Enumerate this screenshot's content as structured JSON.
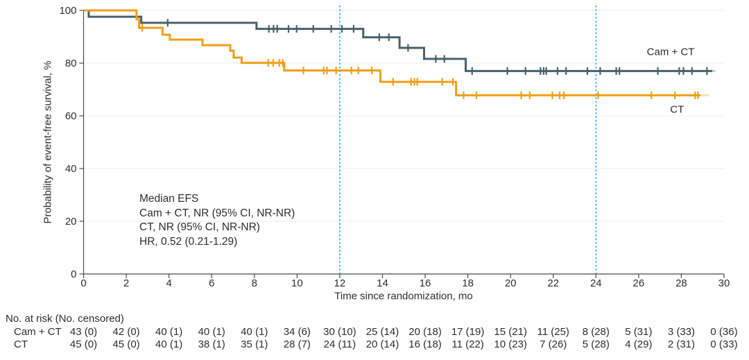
{
  "chart_data": {
    "type": "line",
    "subtype": "kaplan-meier-step",
    "title": "",
    "xlabel": "Time since randomization, mo",
    "ylabel": "Probability of event-free survival, %",
    "xlim": [
      0,
      30
    ],
    "ylim": [
      0,
      100
    ],
    "xticks": [
      0,
      2,
      4,
      6,
      8,
      10,
      12,
      14,
      16,
      18,
      20,
      22,
      24,
      26,
      28,
      30
    ],
    "yticks": [
      0,
      20,
      40,
      60,
      80,
      100
    ],
    "grid": "horizontal",
    "grid_color": "#ececec",
    "axis_color": "#4a4a4a",
    "reference_lines_x": [
      12,
      24
    ],
    "reference_line_color": "#3fb9e8",
    "annotation": {
      "lines": [
        "Median EFS",
        "Cam + CT, NR (95% CI, NR-NR)",
        "CT, NR (95% CI, NR-NR)",
        "HR, 0.52 (0.21-1.29)"
      ]
    },
    "series": [
      {
        "name": "Cam + CT",
        "slug": "cam-ct",
        "color": "#48616f",
        "steps": [
          [
            0,
            100
          ],
          [
            0.24,
            97.6
          ],
          [
            2.7,
            95.3
          ],
          [
            8.1,
            93.0
          ],
          [
            13.1,
            89.8
          ],
          [
            14.8,
            85.8
          ],
          [
            15.95,
            81.6
          ],
          [
            17.9,
            77.0
          ],
          [
            29.45,
            77.0
          ]
        ],
        "tail_to": 29.6,
        "censors": [
          [
            3.94,
            95.3
          ],
          [
            8.68,
            93.0
          ],
          [
            8.9,
            93.0
          ],
          [
            9.07,
            93.0
          ],
          [
            9.6,
            93.0
          ],
          [
            9.98,
            93.0
          ],
          [
            10.76,
            93.0
          ],
          [
            11.6,
            93.0
          ],
          [
            12.1,
            93.0
          ],
          [
            12.65,
            93.0
          ],
          [
            13.85,
            89.8
          ],
          [
            14.3,
            89.8
          ],
          [
            15.2,
            85.8
          ],
          [
            16.5,
            81.6
          ],
          [
            16.9,
            81.6
          ],
          [
            18.2,
            77.0
          ],
          [
            19.85,
            77.0
          ],
          [
            20.7,
            77.0
          ],
          [
            21.4,
            77.0
          ],
          [
            21.55,
            77.0
          ],
          [
            21.67,
            77.0
          ],
          [
            22.2,
            77.0
          ],
          [
            22.6,
            77.0
          ],
          [
            23.6,
            77.0
          ],
          [
            24.2,
            77.0
          ],
          [
            24.95,
            77.0
          ],
          [
            25.1,
            77.0
          ],
          [
            26.9,
            77.0
          ],
          [
            27.9,
            77.0
          ],
          [
            28.1,
            77.0
          ],
          [
            28.5,
            77.0
          ],
          [
            29.2,
            77.0
          ]
        ],
        "label_pos": {
          "t": 27.5,
          "v": 84.2
        }
      },
      {
        "name": "CT",
        "slug": "ct",
        "color": "#f09e16",
        "steps": [
          [
            0,
            100
          ],
          [
            2.48,
            96.6
          ],
          [
            2.6,
            93.4
          ],
          [
            3.7,
            90.8
          ],
          [
            4.04,
            88.9
          ],
          [
            5.57,
            86.8
          ],
          [
            6.87,
            84.7
          ],
          [
            7.03,
            82.1
          ],
          [
            7.4,
            80.1
          ],
          [
            9.4,
            77.2
          ],
          [
            13.9,
            72.9
          ],
          [
            17.45,
            67.8
          ],
          [
            28.9,
            67.8
          ]
        ],
        "tail_to": 29.3,
        "censors": [
          [
            2.74,
            93.4
          ],
          [
            8.65,
            80.1
          ],
          [
            8.88,
            80.1
          ],
          [
            9.17,
            80.1
          ],
          [
            9.33,
            80.1
          ],
          [
            10.3,
            77.2
          ],
          [
            11.25,
            77.2
          ],
          [
            11.4,
            77.2
          ],
          [
            11.83,
            77.2
          ],
          [
            12.55,
            77.2
          ],
          [
            12.87,
            77.2
          ],
          [
            13.5,
            77.2
          ],
          [
            14.5,
            72.9
          ],
          [
            15.34,
            72.9
          ],
          [
            15.5,
            72.9
          ],
          [
            15.63,
            72.9
          ],
          [
            16.8,
            72.9
          ],
          [
            17.3,
            72.9
          ],
          [
            17.8,
            67.8
          ],
          [
            18.4,
            67.8
          ],
          [
            20.5,
            67.8
          ],
          [
            20.9,
            67.8
          ],
          [
            21.96,
            67.8
          ],
          [
            22.3,
            67.8
          ],
          [
            22.5,
            67.8
          ],
          [
            24.1,
            67.8
          ],
          [
            26.6,
            67.8
          ],
          [
            27.7,
            67.8
          ],
          [
            28.65,
            67.8
          ],
          [
            28.78,
            67.8
          ]
        ],
        "label_pos": {
          "t": 27.8,
          "v": 62.4
        }
      }
    ]
  },
  "risk_table": {
    "header": "No. at risk (No. censored)",
    "times": [
      0,
      2,
      4,
      6,
      8,
      10,
      12,
      14,
      16,
      18,
      20,
      22,
      24,
      26,
      28,
      30
    ],
    "rows": [
      {
        "label": "Cam + CT",
        "values": [
          "43 (0)",
          "42 (0)",
          "40 (1)",
          "40 (1)",
          "40 (1)",
          "34 (6)",
          "30 (10)",
          "25 (14)",
          "20 (18)",
          "17 (19)",
          "15 (21)",
          "11 (25)",
          "8 (28)",
          "5 (31)",
          "3 (33)",
          "0 (36)"
        ]
      },
      {
        "label": "CT",
        "values": [
          "45 (0)",
          "45 (0)",
          "40 (1)",
          "38 (1)",
          "35 (1)",
          "28 (7)",
          "24 (11)",
          "20 (14)",
          "16 (18)",
          "11 (22)",
          "10 (23)",
          "7 (26)",
          "5 (28)",
          "4 (29)",
          "2 (31)",
          "0 (33)"
        ]
      }
    ]
  }
}
